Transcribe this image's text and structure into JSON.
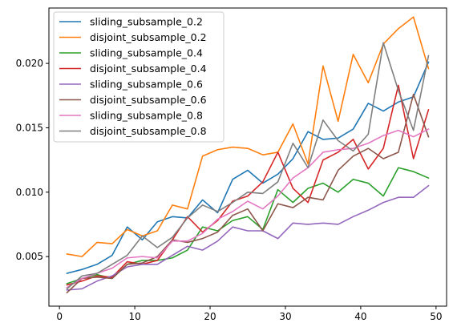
{
  "chart_data": {
    "type": "line",
    "title": "",
    "xlabel": "",
    "ylabel": "",
    "xlim": [
      -1.4,
      51.4
    ],
    "ylim": [
      0.00115,
      0.0243
    ],
    "xticks": [
      0,
      10,
      20,
      30,
      40,
      50
    ],
    "xtick_labels": [
      "0",
      "10",
      "20",
      "30",
      "40",
      "50"
    ],
    "yticks": [
      0.005,
      0.01,
      0.015,
      0.02
    ],
    "ytick_labels": [
      "0.005",
      "0.010",
      "0.015",
      "0.020"
    ],
    "grid": false,
    "legend_position": "upper-left",
    "x": [
      1,
      3,
      5,
      7,
      9,
      11,
      13,
      15,
      17,
      19,
      21,
      23,
      25,
      27,
      29,
      31,
      33,
      35,
      37,
      39,
      41,
      43,
      45,
      47,
      49
    ],
    "series": [
      {
        "name": "sliding_subsample_0.2",
        "color": "#1f77b4",
        "values": [
          0.0037,
          0.004,
          0.0044,
          0.0051,
          0.0073,
          0.0063,
          0.0077,
          0.0081,
          0.008,
          0.0094,
          0.0084,
          0.011,
          0.0117,
          0.0107,
          0.0114,
          0.0126,
          0.0147,
          0.0141,
          0.0142,
          0.0149,
          0.0169,
          0.0163,
          0.017,
          0.0174,
          0.0201
        ]
      },
      {
        "name": "disjoint_subsample_0.2",
        "color": "#ff7f0e",
        "values": [
          0.0052,
          0.005,
          0.0061,
          0.006,
          0.0071,
          0.0066,
          0.007,
          0.009,
          0.0087,
          0.0128,
          0.0133,
          0.0135,
          0.0134,
          0.0129,
          0.0131,
          0.0153,
          0.0122,
          0.0198,
          0.0155,
          0.0207,
          0.0185,
          0.0215,
          0.0227,
          0.0236,
          0.0196
        ]
      },
      {
        "name": "sliding_subsample_0.4",
        "color": "#2ca02c",
        "values": [
          0.0029,
          0.0033,
          0.0036,
          0.0033,
          0.0044,
          0.0047,
          0.0047,
          0.0049,
          0.0055,
          0.0073,
          0.007,
          0.0078,
          0.0081,
          0.0071,
          0.0102,
          0.0092,
          0.0103,
          0.0107,
          0.01,
          0.011,
          0.0107,
          0.0097,
          0.0119,
          0.0116,
          0.0111
        ]
      },
      {
        "name": "disjoint_subsample_0.4",
        "color": "#d62728",
        "values": [
          0.0028,
          0.0031,
          0.0035,
          0.0034,
          0.0046,
          0.0044,
          0.0047,
          0.0063,
          0.0081,
          0.0069,
          0.0078,
          0.0093,
          0.0097,
          0.0108,
          0.0131,
          0.0103,
          0.0092,
          0.0125,
          0.0131,
          0.0141,
          0.0118,
          0.0134,
          0.0183,
          0.0126,
          0.0164
        ]
      },
      {
        "name": "sliding_subsample_0.6",
        "color": "#9467bd",
        "values": [
          0.0024,
          0.0025,
          0.0031,
          0.0035,
          0.0042,
          0.0044,
          0.0044,
          0.0051,
          0.0058,
          0.0055,
          0.0062,
          0.0073,
          0.007,
          0.007,
          0.0064,
          0.0076,
          0.0075,
          0.0076,
          0.0075,
          0.0081,
          0.0086,
          0.0092,
          0.0096,
          0.0096,
          0.0105
        ]
      },
      {
        "name": "disjoint_subsample_0.6",
        "color": "#8c564b",
        "values": [
          0.0022,
          0.0033,
          0.0034,
          0.0033,
          0.0044,
          0.0045,
          0.005,
          0.0063,
          0.0061,
          0.0064,
          0.0069,
          0.0082,
          0.0087,
          0.007,
          0.0091,
          0.0088,
          0.0096,
          0.0094,
          0.0117,
          0.0128,
          0.0134,
          0.0126,
          0.0131,
          0.0176,
          0.0143
        ]
      },
      {
        "name": "sliding_subsample_0.8",
        "color": "#e377c2",
        "values": [
          0.0026,
          0.0033,
          0.0037,
          0.0041,
          0.0049,
          0.005,
          0.0049,
          0.0062,
          0.0062,
          0.0068,
          0.0079,
          0.0085,
          0.0093,
          0.0087,
          0.0097,
          0.0111,
          0.0119,
          0.0131,
          0.0133,
          0.0134,
          0.0138,
          0.0144,
          0.0148,
          0.0143,
          0.0149
        ]
      },
      {
        "name": "disjoint_subsample_0.8",
        "color": "#7f7f7f",
        "values": [
          0.0025,
          0.0035,
          0.0037,
          0.0044,
          0.0051,
          0.0066,
          0.0057,
          0.0065,
          0.008,
          0.009,
          0.0085,
          0.0092,
          0.01,
          0.0099,
          0.0108,
          0.0138,
          0.0119,
          0.0156,
          0.014,
          0.0132,
          0.0145,
          0.0216,
          0.0179,
          0.0148,
          0.0206
        ]
      }
    ]
  }
}
